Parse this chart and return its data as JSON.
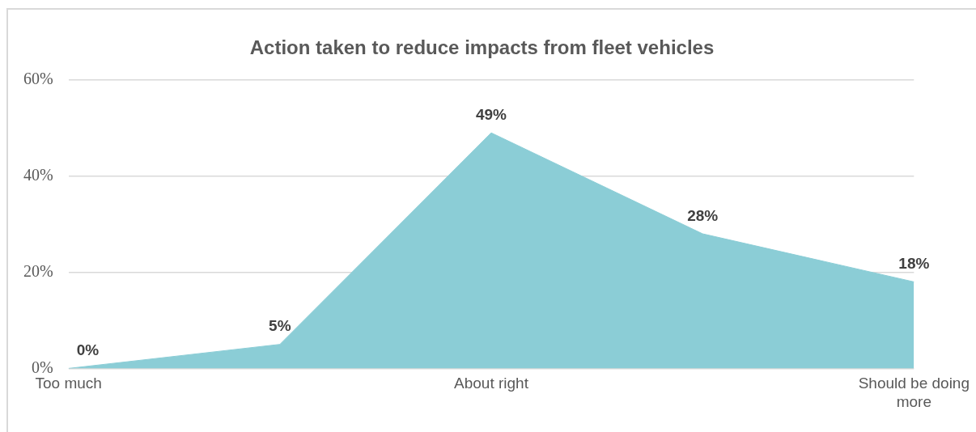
{
  "chart_data": {
    "type": "area",
    "title": "Action taken to reduce impacts from fleet vehicles",
    "categories": [
      "Too much",
      null,
      "About right",
      null,
      "Should be doing more"
    ],
    "values": [
      0,
      5,
      49,
      28,
      18
    ],
    "color": "#8bcdd6",
    "value_labels": [
      "0%",
      "5%",
      "49%",
      "28%",
      "18%"
    ],
    "ylim": [
      0,
      60
    ],
    "yticks": [
      {
        "value": 0,
        "label": "0%"
      },
      {
        "value": 20,
        "label": "20%"
      },
      {
        "value": 40,
        "label": "40%"
      },
      {
        "value": 60,
        "label": "60%"
      }
    ],
    "grid": "y"
  }
}
